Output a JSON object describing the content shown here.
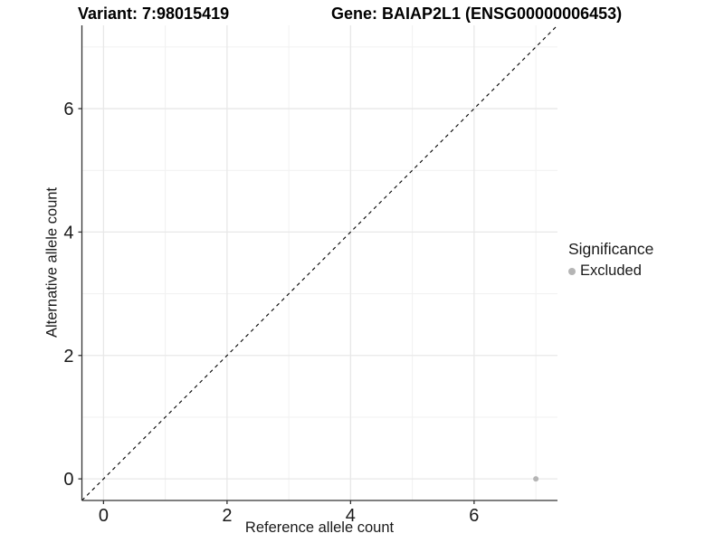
{
  "chart_data": {
    "type": "scatter",
    "title_variant": "Variant: 7:98015419",
    "title_gene": "Gene: BAIAP2L1 (ENSG00000006453)",
    "xlabel": "Reference allele count",
    "ylabel": "Alternative allele count",
    "xlim": [
      -0.35,
      7.35
    ],
    "ylim": [
      -0.35,
      7.35
    ],
    "x_major_ticks": [
      0,
      2,
      4,
      6
    ],
    "y_major_ticks": [
      0,
      2,
      4,
      6
    ],
    "x_minor_gridlines": [
      1,
      3,
      5,
      7
    ],
    "y_minor_gridlines": [
      1,
      3,
      5,
      7
    ],
    "grid": "major+minor",
    "legend_position": "right",
    "reference_line": {
      "type": "identity y=x",
      "style": "dashed",
      "color": "#000000"
    },
    "series": [
      {
        "name": "Excluded",
        "color": "#b5b5b5",
        "points": [
          {
            "x": 7,
            "y": 0
          }
        ]
      }
    ],
    "legend": {
      "title": "Significance",
      "items": [
        {
          "label": "Excluded",
          "color": "#b5b5b5"
        }
      ]
    }
  },
  "colors": {
    "background": "#ffffff",
    "grid_major": "#e8e8e8",
    "grid_minor": "#f1f1f1",
    "axis_line": "#333333",
    "tick_text": "#1a1a1a",
    "point": "#b5b5b5"
  }
}
